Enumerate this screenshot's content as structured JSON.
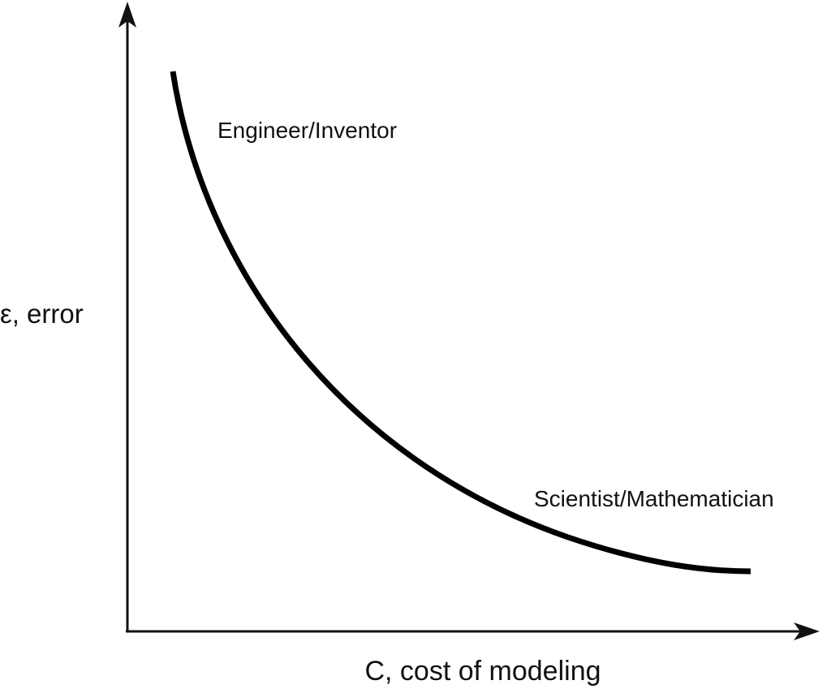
{
  "diagram": {
    "y_axis_label": "ε, error",
    "x_axis_label": "C, cost of modeling",
    "annotations": [
      "Engineer/Inventor",
      "Scientist/Mathematician"
    ]
  }
}
